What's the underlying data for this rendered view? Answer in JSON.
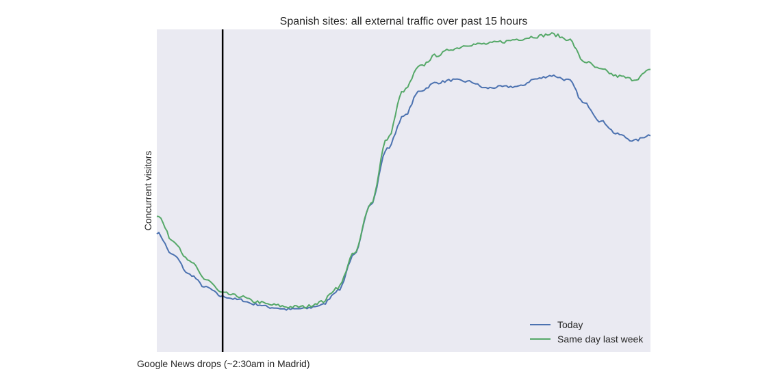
{
  "chart_data": {
    "type": "line",
    "title": "Spanish sites: all external traffic over past 15 hours",
    "xlabel": "",
    "ylabel": "Concurrent visitors",
    "xlim": [
      0,
      15
    ],
    "ylim": [
      0,
      100
    ],
    "x_tick_labels": [],
    "y_tick_labels": [],
    "grid": false,
    "background": "#eaeaf2",
    "legend": {
      "location": "lower-right"
    },
    "annotation": {
      "x": 2,
      "text": "Google News drops (~2:30am in Madrid)",
      "color": "#000000"
    },
    "x": [
      0,
      0.5,
      1,
      1.5,
      2,
      2.5,
      3,
      3.5,
      4,
      4.5,
      5,
      5.5,
      6,
      6.5,
      7,
      7.5,
      8,
      8.5,
      9,
      9.5,
      10,
      10.5,
      11,
      11.5,
      12,
      12.5,
      13,
      13.5,
      14,
      14.5,
      15
    ],
    "series": [
      {
        "name": "Today",
        "color": "#4c72b0",
        "values": [
          37,
          30,
          24,
          20,
          17.2,
          16.2,
          14.8,
          13.8,
          13.2,
          13.5,
          14.5,
          19,
          30,
          46,
          63,
          73,
          81,
          83.5,
          84.3,
          83.8,
          81.8,
          82.2,
          82.3,
          84.6,
          85.7,
          84.3,
          77,
          71.5,
          67.5,
          65.5,
          67.3
        ],
        "noise_amplitude": 0.4
      },
      {
        "name": "Same day last week",
        "color": "#55a868",
        "values": [
          42.5,
          34.5,
          28,
          22.5,
          18.2,
          17.3,
          15.6,
          14.6,
          14,
          14,
          15.5,
          20,
          30.5,
          46,
          66,
          81,
          88.5,
          92,
          94,
          95.3,
          95.5,
          96.2,
          97,
          97.8,
          98.5,
          97,
          90,
          87.5,
          85.5,
          84.5,
          87.3
        ],
        "noise_amplitude": 0.5
      }
    ]
  }
}
